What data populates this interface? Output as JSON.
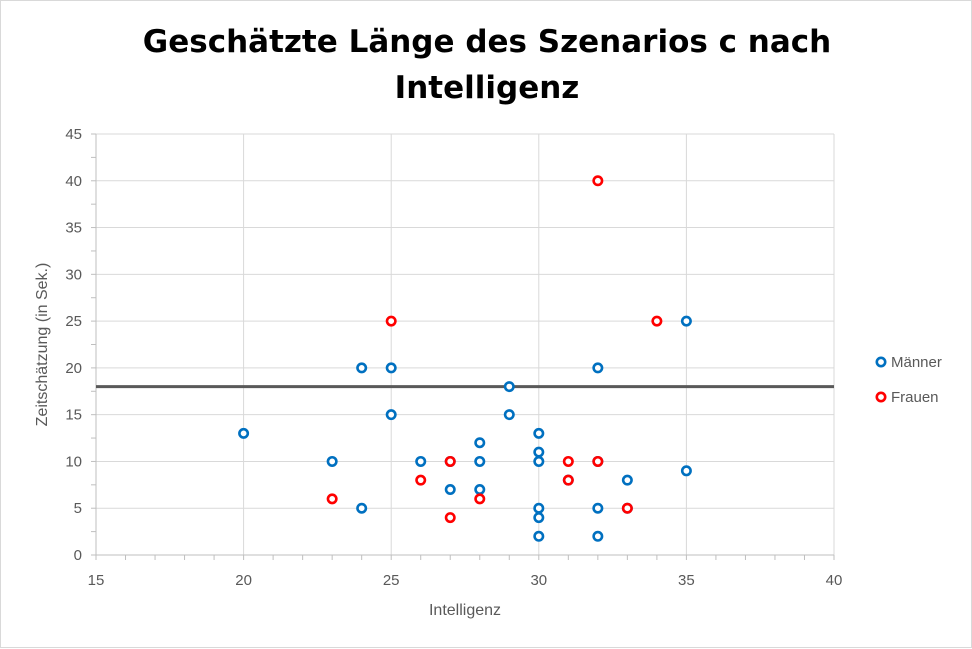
{
  "title_line1": "Geschätzte Länge des Szenarios c nach",
  "title_line2": "Intelligenz",
  "colors": {
    "maenner": "#0070C0",
    "frauen": "#FF0000",
    "reference_line": "#595959",
    "grid": "#d9d9d9"
  },
  "chart_data": {
    "type": "scatter",
    "title": "Geschätzte Länge des Szenarios c nach Intelligenz",
    "xlabel": "Intelligenz",
    "ylabel": "Zeitschätzung (in Sek.)",
    "xlim": [
      15,
      40
    ],
    "ylim": [
      0,
      45
    ],
    "xticks": [
      15,
      20,
      25,
      30,
      35,
      40
    ],
    "yticks": [
      0,
      5,
      10,
      15,
      20,
      25,
      30,
      35,
      40,
      45
    ],
    "grid": true,
    "legend": "right",
    "reference_line": {
      "y": 18
    },
    "series": [
      {
        "name": "Männer",
        "color": "#0070C0",
        "points": [
          [
            20,
            13
          ],
          [
            23,
            10
          ],
          [
            24,
            5
          ],
          [
            24,
            20
          ],
          [
            25,
            20
          ],
          [
            25,
            15
          ],
          [
            26,
            10
          ],
          [
            27,
            10
          ],
          [
            27,
            7
          ],
          [
            28,
            12
          ],
          [
            28,
            10
          ],
          [
            28,
            7
          ],
          [
            29,
            18
          ],
          [
            29,
            15
          ],
          [
            30,
            13
          ],
          [
            30,
            11
          ],
          [
            30,
            10
          ],
          [
            30,
            5
          ],
          [
            30,
            4
          ],
          [
            30,
            2
          ],
          [
            31,
            8
          ],
          [
            32,
            20
          ],
          [
            32,
            10
          ],
          [
            32,
            5
          ],
          [
            32,
            2
          ],
          [
            33,
            8
          ],
          [
            33,
            5
          ],
          [
            35,
            25
          ],
          [
            35,
            9
          ]
        ]
      },
      {
        "name": "Frauen",
        "color": "#FF0000",
        "points": [
          [
            23,
            6
          ],
          [
            25,
            25
          ],
          [
            26,
            8
          ],
          [
            27,
            10
          ],
          [
            27,
            4
          ],
          [
            28,
            6
          ],
          [
            31,
            10
          ],
          [
            31,
            8
          ],
          [
            32,
            40
          ],
          [
            32,
            10
          ],
          [
            33,
            5
          ],
          [
            34,
            25
          ]
        ]
      }
    ]
  }
}
